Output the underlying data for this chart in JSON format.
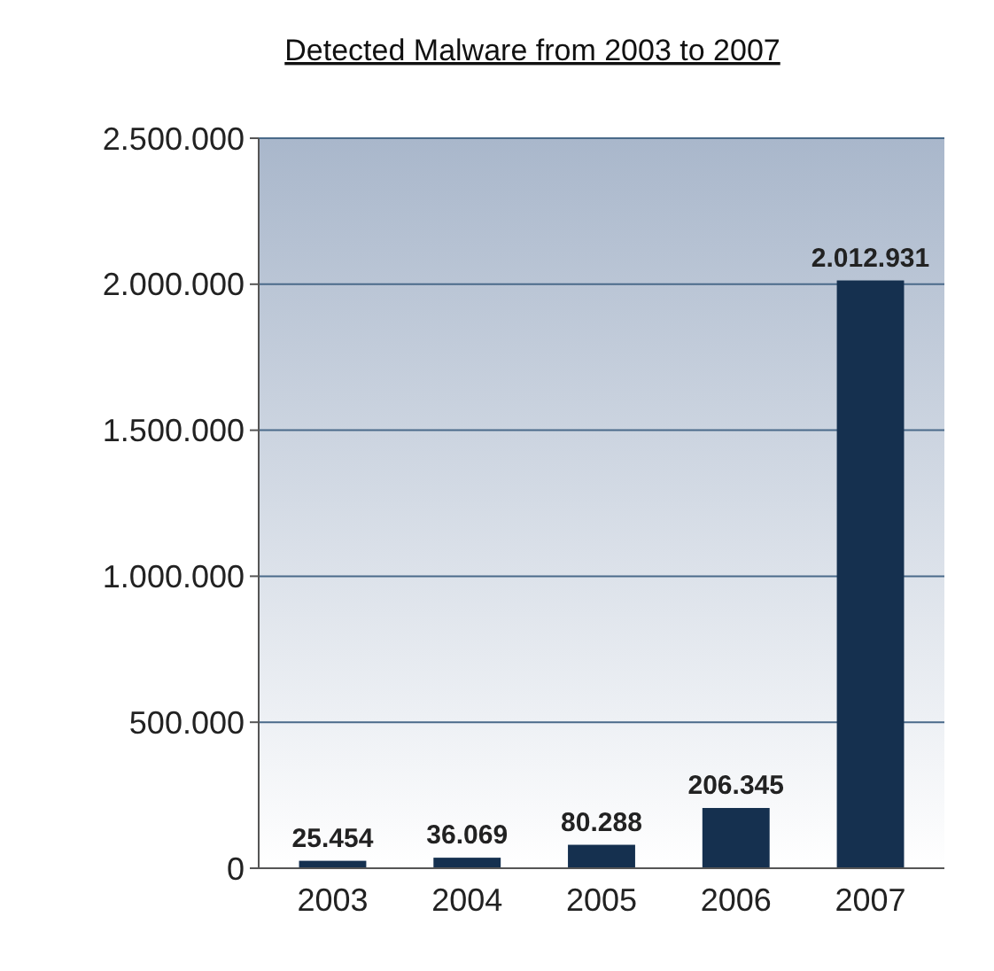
{
  "chart_data": {
    "type": "bar",
    "title": "Detected Malware from 2003 to 2007",
    "categories": [
      "2003",
      "2004",
      "2005",
      "2006",
      "2007"
    ],
    "values": [
      25454,
      36069,
      80288,
      206345,
      2012931
    ],
    "value_labels": [
      "25.454",
      "36.069",
      "80.288",
      "206.345",
      "2.012.931"
    ],
    "color": "#15304f",
    "ylim": [
      0,
      2500000
    ],
    "yticks": [
      0,
      {
        "value": 500000,
        "label": "500.000"
      },
      {
        "value": 1000000,
        "label": "1.000.000"
      },
      {
        "value": 1500000,
        "label": "1.500.000"
      },
      {
        "value": 2000000,
        "label": "2.000.000"
      },
      {
        "value": 2500000,
        "label": "2.500.000"
      }
    ],
    "grid": "y"
  }
}
